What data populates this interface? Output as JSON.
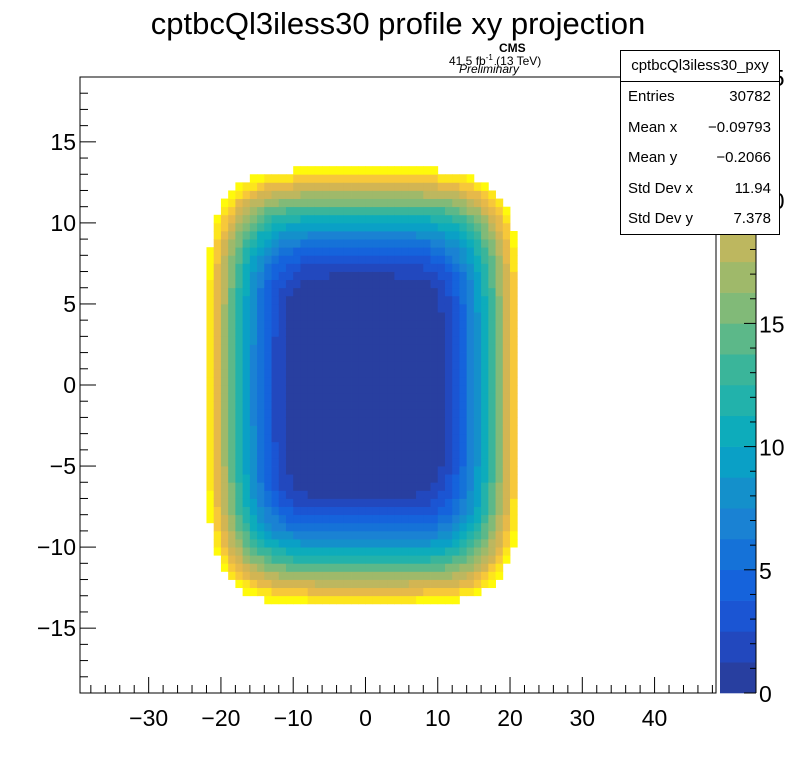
{
  "title": "cptbcQl3iless30 profile xy projection",
  "labels": {
    "cms": "CMS",
    "lumi": "41.5 fb",
    "lumi_sup": "-1",
    "lumi_energy": " (13 TeV)",
    "preliminary": "Preliminary"
  },
  "stats": {
    "name": "cptbcQl3iless30_pxy",
    "rows": [
      {
        "label": "Entries",
        "value": "30782"
      },
      {
        "label": "Mean x",
        "value": "−0.09793"
      },
      {
        "label": "Mean y",
        "value": "−0.2066"
      },
      {
        "label": "Std Dev x",
        "value": "11.94"
      },
      {
        "label": "Std Dev y",
        "value": "7.378"
      }
    ]
  },
  "chart_data": {
    "type": "heatmap",
    "title": "cptbcQl3iless30 profile xy projection",
    "xlabel": "",
    "ylabel": "",
    "xlim": [
      -39.5,
      48.5
    ],
    "ylim": [
      -19,
      19
    ],
    "zlim": [
      0,
      25
    ],
    "x_ticks": [
      "−30",
      "−20",
      "−10",
      "0",
      "10",
      "20",
      "30",
      "40"
    ],
    "y_ticks": [
      "−15",
      "−10",
      "−5",
      "0",
      "5",
      "10",
      "15"
    ],
    "z_ticks": [
      "0",
      "5",
      "10",
      "15",
      "20",
      "25"
    ],
    "shape": "rounded rectangle of filled bins; value grows from the center outward",
    "region": {
      "x_min": -22,
      "x_max": 21.5,
      "y_min": -13.5,
      "y_max": 13.3
    },
    "inner_flat_region": {
      "x_min": -9.5,
      "x_max": 8.5,
      "y_min": -5.5,
      "y_max": 5
    },
    "center_value": 0.5,
    "edge_value": 25,
    "bin_width_x": 1,
    "bin_height_y": 0.5,
    "palette": [
      "#283fa0",
      "#2248be",
      "#1b55d3",
      "#1563dc",
      "#1572d8",
      "#1a82d3",
      "#1490cb",
      "#0aa0c6",
      "#0dacbb",
      "#22b2ab",
      "#3ab59a",
      "#5cb889",
      "#81ba78",
      "#9fb96a",
      "#bdb75f",
      "#d2b553",
      "#e6b94a",
      "#f7c83a",
      "#fde51d",
      "#fffa0b"
    ],
    "grid": false,
    "legend": "color scale at right"
  }
}
